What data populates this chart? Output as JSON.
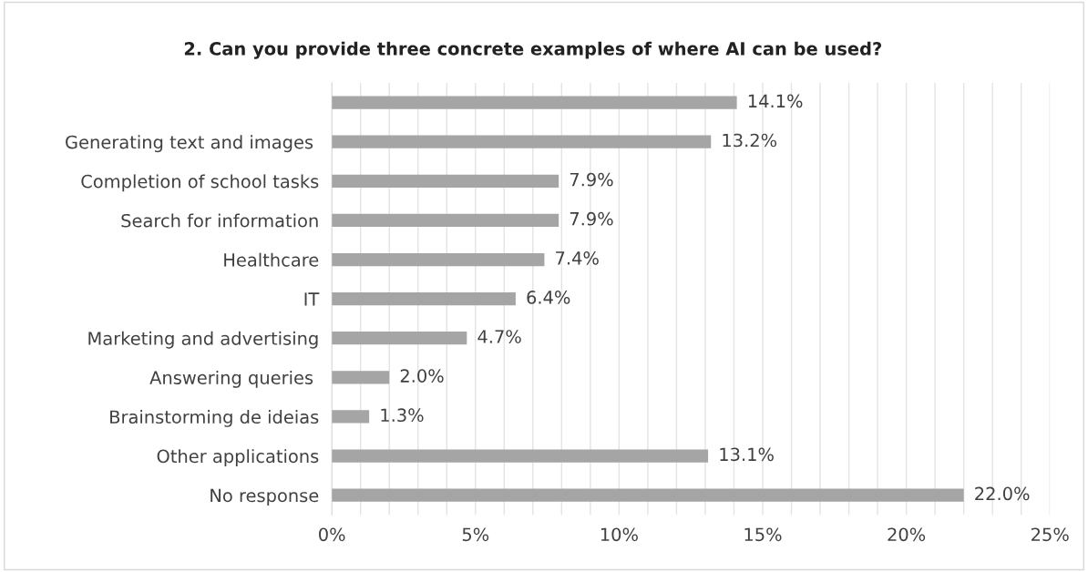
{
  "chart_data": {
    "type": "bar",
    "orientation": "horizontal",
    "title": "2. Can you provide three concrete examples of where AI can be used?",
    "categories": [
      null,
      "Generating text and images ",
      "Completion of school tasks",
      "Search for information",
      "Healthcare",
      "IT",
      "Marketing and advertising",
      "Answering queries ",
      "Brainstorming de ideias",
      "Other applications",
      "No response"
    ],
    "values": [
      14.1,
      13.2,
      7.9,
      7.9,
      7.4,
      6.4,
      4.7,
      2.0,
      1.3,
      13.1,
      22.0
    ],
    "value_labels": [
      "14.1%",
      "13.2%",
      "7.9%",
      "7.9%",
      "7.4%",
      "6.4%",
      "4.7%",
      "2.0%",
      "1.3%",
      "13.1%",
      "22.0%"
    ],
    "color": "#a5a5a5",
    "xlim": [
      0,
      25
    ],
    "xticks": [
      {
        "value": 0,
        "label": "0%"
      },
      {
        "value": 1,
        "label": null
      },
      {
        "value": 2,
        "label": null
      },
      {
        "value": 3,
        "label": null
      },
      {
        "value": 4,
        "label": null
      },
      {
        "value": 5,
        "label": "5%"
      },
      {
        "value": 6,
        "label": null
      },
      {
        "value": 7,
        "label": null
      },
      {
        "value": 8,
        "label": null
      },
      {
        "value": 9,
        "label": null
      },
      {
        "value": 10,
        "label": "10%"
      },
      {
        "value": 11,
        "label": null
      },
      {
        "value": 12,
        "label": null
      },
      {
        "value": 13,
        "label": null
      },
      {
        "value": 14,
        "label": null
      },
      {
        "value": 15,
        "label": "15%"
      },
      {
        "value": 16,
        "label": null
      },
      {
        "value": 17,
        "label": null
      },
      {
        "value": 18,
        "label": null
      },
      {
        "value": 19,
        "label": null
      },
      {
        "value": 20,
        "label": "20%"
      },
      {
        "value": 21,
        "label": null
      },
      {
        "value": 22,
        "label": null
      },
      {
        "value": 23,
        "label": null
      },
      {
        "value": 24,
        "label": null
      },
      {
        "value": 25,
        "label": "25%"
      }
    ],
    "grid": "x"
  }
}
